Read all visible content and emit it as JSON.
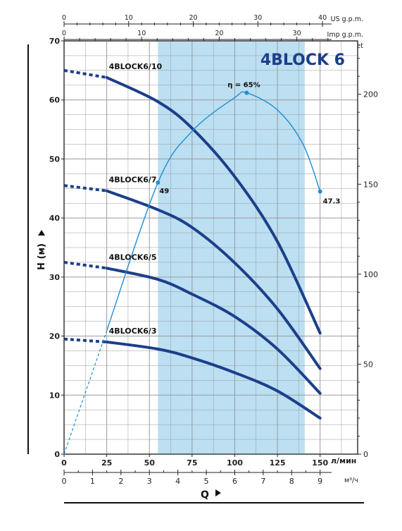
{
  "chart_data": {
    "type": "line",
    "title": "4BLOCK 6",
    "colors": {
      "curve": "#1c3f8b",
      "efficiency": "#1e8fd6",
      "band": "#bcdff2",
      "grid": "#9a9a9a",
      "title": "#1c3f8b"
    },
    "x_lmin": {
      "label": "л/мин",
      "ticks": [
        "0",
        "25",
        "50",
        "75",
        "100",
        "125",
        "150"
      ],
      "range": [
        0,
        172
      ]
    },
    "x_m3h": {
      "label": "м³/ч",
      "ticks": [
        "0",
        "1",
        "2",
        "3",
        "4",
        "5",
        "6",
        "7",
        "8",
        "9"
      ]
    },
    "x_usgpm": {
      "label": "US g.p.m.",
      "ticks": [
        "0",
        "10",
        "20",
        "30",
        "40"
      ]
    },
    "x_impgpm": {
      "label": "Imp g.p.m.",
      "ticks": [
        "0",
        "10",
        "20",
        "30"
      ]
    },
    "y_m": {
      "label": "H (м)",
      "ticks": [
        "0",
        "10",
        "20",
        "30",
        "40",
        "50",
        "60",
        "70"
      ],
      "range": [
        0,
        70
      ]
    },
    "y_feet": {
      "label": "feet",
      "ticks": [
        "0",
        "50",
        "100",
        "150",
        "200"
      ]
    },
    "x_axis_label": "Q",
    "grid": true,
    "working_range_lmin": [
      55,
      141
    ],
    "series": [
      {
        "name": "4BLOCK6/10",
        "x": [
          0,
          25,
          55,
          75,
          100,
          125,
          150
        ],
        "y": [
          65,
          63.8,
          59.7,
          55.2,
          47,
          36,
          20.5
        ],
        "dashed_until": 25
      },
      {
        "name": "4BLOCK6/7",
        "x": [
          0,
          25,
          55,
          75,
          100,
          125,
          150
        ],
        "y": [
          45.5,
          44.6,
          41.4,
          38.4,
          32.4,
          24.6,
          14.5
        ],
        "dashed_until": 25
      },
      {
        "name": "4BLOCK6/5",
        "x": [
          0,
          25,
          55,
          75,
          100,
          125,
          150
        ],
        "y": [
          32.5,
          31.5,
          29.6,
          27.1,
          23.3,
          17.8,
          10.3
        ],
        "dashed_until": 25
      },
      {
        "name": "4BLOCK6/3",
        "x": [
          0,
          25,
          55,
          75,
          100,
          125,
          150
        ],
        "y": [
          19.5,
          19,
          17.8,
          16.3,
          13.8,
          10.7,
          6.1
        ],
        "dashed_until": 25
      }
    ],
    "efficiency_curve": {
      "x": [
        0,
        55,
        75,
        100,
        107,
        125,
        140,
        150
      ],
      "y": [
        0,
        46,
        54.7,
        60.4,
        61.2,
        58.3,
        52.5,
        44.5
      ],
      "dashed_until": 25,
      "labels": [
        {
          "text": "49",
          "x": 55,
          "y": 46
        },
        {
          "text": "η = 65%",
          "x": 107,
          "y": 61.2
        },
        {
          "text": "47.3",
          "x": 150,
          "y": 44.5
        }
      ]
    }
  }
}
